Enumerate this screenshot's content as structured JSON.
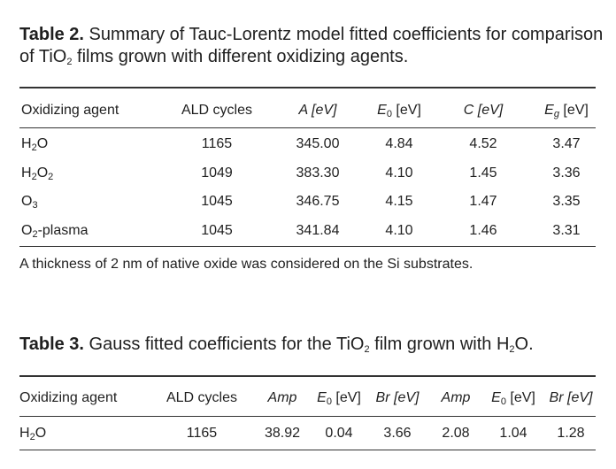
{
  "table2": {
    "label": "Table 2.",
    "caption_a": " Summary of Tauc-Lorentz model fitted coefficients for comparison",
    "caption_b": "of TiO",
    "caption_sub": "2",
    "caption_c": " films grown with different oxidizing agents.",
    "headers": {
      "agent": "Oxidizing agent",
      "cycles": "ALD cycles",
      "a": "A [eV]",
      "e0_main": "E",
      "e0_sub": "0",
      "e0_unit": " [eV]",
      "c": "C [eV]",
      "eg_main": "E",
      "eg_sub": "g",
      "eg_unit": " [eV]"
    },
    "rows": [
      {
        "agent_pre": "H",
        "agent_sub1": "2",
        "agent_mid": "O",
        "agent_sub2": "",
        "agent_post": "",
        "cycles": "1165",
        "a": "345.00",
        "e0": "4.84",
        "c": "4.52",
        "eg": "3.47"
      },
      {
        "agent_pre": "H",
        "agent_sub1": "2",
        "agent_mid": "O",
        "agent_sub2": "2",
        "agent_post": "",
        "cycles": "1049",
        "a": "383.30",
        "e0": "4.10",
        "c": "1.45",
        "eg": "3.36"
      },
      {
        "agent_pre": "O",
        "agent_sub1": "3",
        "agent_mid": "",
        "agent_sub2": "",
        "agent_post": "",
        "cycles": "1045",
        "a": "346.75",
        "e0": "4.15",
        "c": "1.47",
        "eg": "3.35"
      },
      {
        "agent_pre": "O",
        "agent_sub1": "2",
        "agent_mid": "-plasma",
        "agent_sub2": "",
        "agent_post": "",
        "cycles": "1045",
        "a": "341.84",
        "e0": "4.10",
        "c": "1.46",
        "eg": "3.31"
      }
    ],
    "note": "A thickness of 2 nm of native oxide was considered on the Si substrates."
  },
  "table3": {
    "label": "Table 3.",
    "caption_a": " Gauss fitted coefficients for the TiO",
    "caption_sub": "2",
    "caption_b": " film grown with H",
    "caption_sub2": "2",
    "caption_c": "O.",
    "headers": {
      "agent": "Oxidizing agent",
      "cycles": "ALD cycles",
      "amp1": "Amp",
      "e01_main": "E",
      "e01_sub": "0",
      "e01_unit": " [eV]",
      "br1": "Br [eV]",
      "amp2": "Amp",
      "e02_main": "E",
      "e02_sub": "0",
      "e02_unit": " [eV]",
      "br2": "Br [eV]"
    },
    "row": {
      "agent_pre": "H",
      "agent_sub": "2",
      "agent_post": "O",
      "cycles": "1165",
      "amp1": "38.92",
      "e01": "0.04",
      "br1": "3.66",
      "amp2": "2.08",
      "e02": "1.04",
      "br2": "1.28"
    }
  }
}
